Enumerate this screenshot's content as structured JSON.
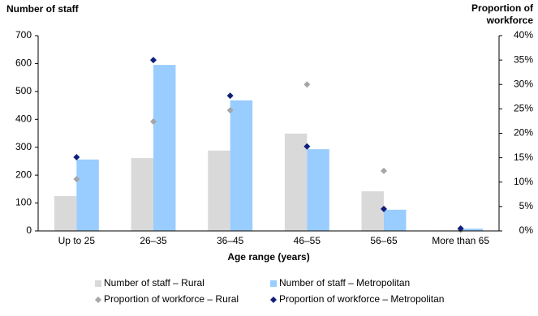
{
  "chart_data": {
    "type": "bar",
    "ylabel": "Number of staff",
    "y2label": [
      "Proportion of",
      "workforce"
    ],
    "xlabel": "Age range (years)",
    "categories": [
      "Up to 25",
      "26–35",
      "36–45",
      "46–55",
      "56–65",
      "More than 65"
    ],
    "series": [
      {
        "name": "Number of staff – Rural",
        "type": "bar",
        "axis": "y",
        "color": "#d9d9d9",
        "values": [
          125,
          261,
          288,
          349,
          142,
          2
        ]
      },
      {
        "name": "Number of staff – Metropolitan",
        "type": "bar",
        "axis": "y",
        "color": "#99ccff",
        "values": [
          256,
          595,
          468,
          293,
          76,
          8
        ]
      },
      {
        "name": "Proportion of workforce – Rural",
        "type": "scatter",
        "axis": "y2",
        "color": "#a6a6a6",
        "values": [
          10.6,
          22.4,
          24.7,
          30.0,
          12.3,
          0.2
        ]
      },
      {
        "name": "Proportion of workforce – Metropolitan",
        "type": "scatter",
        "axis": "y2",
        "color": "#0f1f7a",
        "values": [
          15.1,
          35.0,
          27.7,
          17.3,
          4.5,
          0.5
        ]
      }
    ],
    "ylim": [
      0,
      700
    ],
    "yticks": [
      0,
      100,
      200,
      300,
      400,
      500,
      600,
      700
    ],
    "y2lim": [
      0,
      40
    ],
    "y2ticks": [
      {
        "value": 0,
        "label": "0%"
      },
      {
        "value": 5,
        "label": "5%"
      },
      {
        "value": 10,
        "label": "10%"
      },
      {
        "value": 15,
        "label": "15%"
      },
      {
        "value": 20,
        "label": "20%"
      },
      {
        "value": 25,
        "label": "25%"
      },
      {
        "value": 30,
        "label": "30%"
      },
      {
        "value": 35,
        "label": "35%"
      },
      {
        "value": 40,
        "label": "40%"
      }
    ],
    "grid": false
  }
}
